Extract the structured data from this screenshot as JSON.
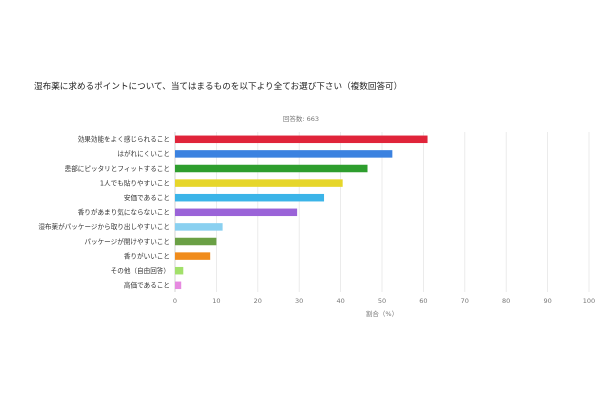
{
  "chart_data": {
    "type": "bar",
    "orientation": "horizontal",
    "title": "湿布薬に求めるポイントについて、当てはまるものを以下より全てお選び下さい（複数回答可）",
    "subtitle": "回答数: 663",
    "xlabel": "割合（%）",
    "ylabel": "",
    "xlim": [
      0,
      100
    ],
    "xticks": [
      0,
      10,
      20,
      30,
      40,
      50,
      60,
      70,
      80,
      90,
      100
    ],
    "grid": true,
    "legend": "none",
    "categories": [
      "効果効能をよく感じられること",
      "はがれにくいこと",
      "患部にピッタリとフィットすること",
      "1人でも貼りやすいこと",
      "安価であること",
      "香りがあまり気にならないこと",
      "湿布薬がパッケージから取り出しやすいこと",
      "パッケージが開けやすいこと",
      "香りがいいこと",
      "その他（自由回答）",
      "高価であること"
    ],
    "values": [
      61,
      52.5,
      46.5,
      40.5,
      36,
      29.5,
      11.5,
      10,
      8.5,
      2,
      1.5
    ],
    "colors": [
      "#e0243a",
      "#3b82e0",
      "#2e9e2e",
      "#e6d62a",
      "#3bb4e8",
      "#9a63d8",
      "#8ad0f0",
      "#6aa045",
      "#f08c1c",
      "#a2e06a",
      "#e68ae0"
    ]
  }
}
